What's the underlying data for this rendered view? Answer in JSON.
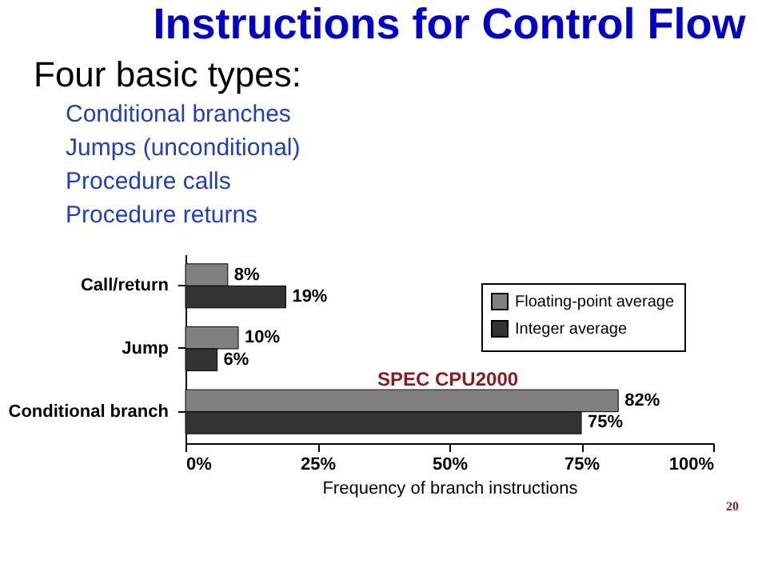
{
  "chart_data": {
    "type": "bar",
    "orientation": "horizontal",
    "title": "Instructions for Control Flow",
    "xlabel": "Frequency of branch instructions",
    "categories": [
      "Call/return",
      "Jump",
      "Conditional branch"
    ],
    "series": [
      {
        "name": "Floating-point average",
        "color": "#808080",
        "values": [
          8,
          10,
          82
        ],
        "value_labels": [
          "8%",
          "10%",
          "82%"
        ]
      },
      {
        "name": "Integer average",
        "color": "#333333",
        "values": [
          19,
          6,
          75
        ],
        "value_labels": [
          "19%",
          "6%",
          "75%"
        ]
      }
    ],
    "xlim": [
      0,
      100
    ],
    "xticks": [
      {
        "value": 0,
        "label": "0%"
      },
      {
        "value": 25,
        "label": "25%"
      },
      {
        "value": 50,
        "label": "50%"
      },
      {
        "value": 75,
        "label": "75%"
      },
      {
        "value": 100,
        "label": "100%"
      }
    ],
    "grid": false,
    "legend": "top right",
    "annotations": [
      "Four basic types:",
      "Conditional branches",
      "Jumps (unconditional)",
      "Procedure calls",
      "Procedure returns",
      "SPEC CPU2000",
      "20"
    ]
  }
}
